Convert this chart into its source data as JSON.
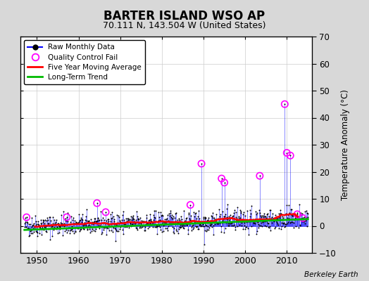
{
  "title": "BARTER ISLAND WSO AP",
  "subtitle": "70.111 N, 143.504 W (United States)",
  "ylabel_right": "Temperature Anomaly (°C)",
  "credit": "Berkeley Earth",
  "xlim": [
    1946,
    2016
  ],
  "ylim": [
    -10,
    70
  ],
  "yticks": [
    -10,
    0,
    10,
    20,
    30,
    40,
    50,
    60,
    70
  ],
  "xticks": [
    1950,
    1960,
    1970,
    1980,
    1990,
    2000,
    2010
  ],
  "bg_color": "#d8d8d8",
  "plot_bg_color": "#ffffff",
  "raw_color": "#0000ff",
  "dot_color": "#000000",
  "qc_color": "#ff00ff",
  "ma_color": "#ff0000",
  "trend_color": "#00bb00",
  "seed": 42,
  "spikes": [
    [
      1989.5,
      23.0
    ],
    [
      1990.2,
      -7.0
    ],
    [
      1994.3,
      17.5
    ],
    [
      1995.0,
      16.0
    ],
    [
      1995.7,
      8.0
    ],
    [
      2003.5,
      18.5
    ],
    [
      2009.5,
      45.0
    ],
    [
      2010.0,
      27.0
    ],
    [
      2010.8,
      26.0
    ],
    [
      2013.0,
      8.0
    ]
  ],
  "qc_years": [
    1947.5,
    1957.2,
    1966.5,
    1989.5,
    1994.3,
    1995.0,
    2003.5,
    2009.5,
    2010.0,
    2010.8,
    2012.5,
    2013.8
  ]
}
